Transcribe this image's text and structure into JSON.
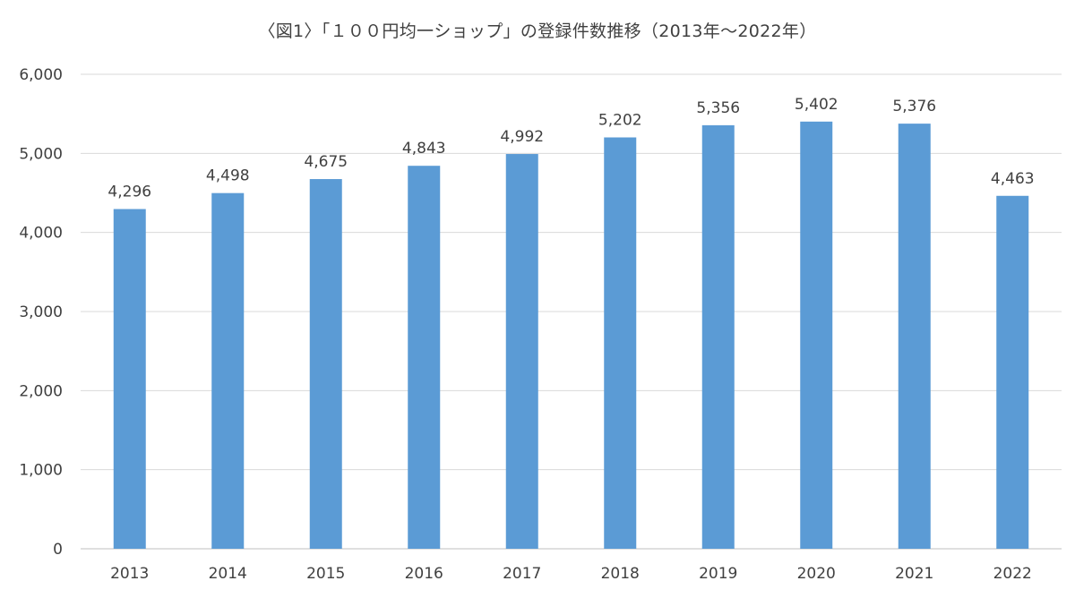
{
  "chart_data": {
    "type": "bar",
    "title": "〈図1〉「１００円均一ショップ」の登録件数推移（2013年～2022年）",
    "categories": [
      "2013",
      "2014",
      "2015",
      "2016",
      "2017",
      "2018",
      "2019",
      "2020",
      "2021",
      "2022"
    ],
    "values": [
      4296,
      4498,
      4675,
      4843,
      4992,
      5202,
      5356,
      5402,
      5376,
      4463
    ],
    "data_labels": [
      "4,296",
      "4,498",
      "4,675",
      "4,843",
      "4,992",
      "5,202",
      "5,356",
      "5,402",
      "5,376",
      "4,463"
    ],
    "yticks": [
      0,
      1000,
      2000,
      3000,
      4000,
      5000,
      6000
    ],
    "ytick_labels": [
      "0",
      "1,000",
      "2,000",
      "3,000",
      "4,000",
      "5,000",
      "6,000"
    ],
    "ylim": [
      0,
      6000
    ],
    "xlabel": "",
    "ylabel": "",
    "grid": true,
    "legend": "none",
    "bar_color": "#5b9bd5",
    "grid_color": "#d9d9d9"
  }
}
